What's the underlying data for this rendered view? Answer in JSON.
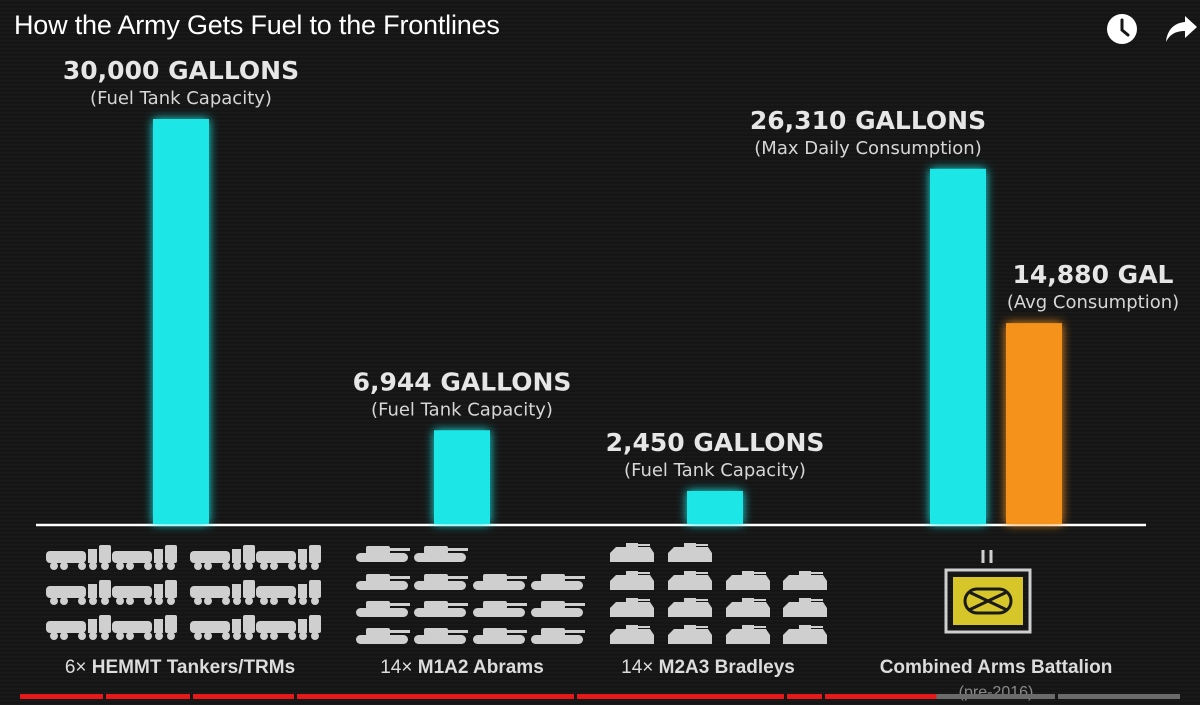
{
  "window": {
    "title": "How the Army Gets Fuel to the Frontlines",
    "icons": [
      "clock-icon",
      "share-icon"
    ]
  },
  "colors": {
    "background": "#151515",
    "cyan": "#1de6e6",
    "orange": "#f5921e",
    "battalion_box": "#d6c62a",
    "progress_played": "#e51919",
    "progress_unplayed": "#6b6b6b"
  },
  "chart_data": {
    "type": "bar",
    "title": "",
    "xlabel": "",
    "ylabel": "",
    "grid": false,
    "ylim": [
      0,
      30000
    ],
    "categories": [
      "HEMMT",
      "M1A2",
      "M2A3",
      "Battalion"
    ],
    "bars": [
      {
        "category": "HEMMT",
        "value": 30000,
        "color": "#1de6e6",
        "label": "30,000 GALLONS",
        "sublabel": "(Fuel Tank Capacity)"
      },
      {
        "category": "M1A2",
        "value": 6944,
        "color": "#1de6e6",
        "label": "6,944 GALLONS",
        "sublabel": "(Fuel Tank Capacity)"
      },
      {
        "category": "M2A3",
        "value": 2450,
        "color": "#1de6e6",
        "label": "2,450 GALLONS",
        "sublabel": "(Fuel Tank Capacity)"
      },
      {
        "category": "Battalion",
        "value": 26310,
        "color": "#1de6e6",
        "label": "26,310 GALLONS",
        "sublabel": "(Max Daily Consumption)"
      },
      {
        "category": "Battalion",
        "value": 14880,
        "color": "#f5921e",
        "label": "14,880 GAL",
        "sublabel": "(Avg Consumption)"
      }
    ],
    "groups": [
      {
        "count": "6×",
        "name": "HEMMT Tankers/TRMs",
        "icon": "hemmt-truck-icon",
        "icon_count": 6
      },
      {
        "count": "14×",
        "name": "M1A2 Abrams",
        "icon": "abrams-tank-icon",
        "icon_count": 14
      },
      {
        "count": "14×",
        "name": "M2A3 Bradleys",
        "icon": "bradley-ifv-icon",
        "icon_count": 14
      },
      {
        "count": "",
        "name": "Combined Arms Battalion",
        "note": "(pre-2016)",
        "icon": "battalion-symbol-icon",
        "icon_count": 1
      }
    ]
  },
  "video": {
    "progress_fraction": 0.79
  }
}
